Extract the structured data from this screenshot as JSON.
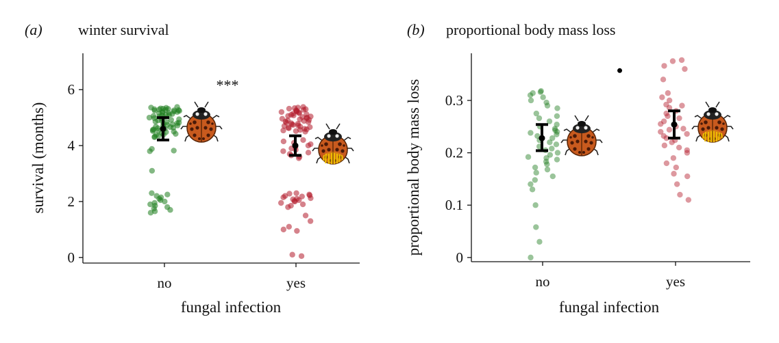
{
  "colors": {
    "no_infection": "#1e7d1e",
    "infection": "#b31b2b",
    "errorbar": "#000000",
    "axis": "#111111"
  },
  "icons": {
    "healthy_ladybird": "ladybird-icon",
    "infected_ladybird": "infected-ladybird-icon"
  },
  "chart_data": [
    {
      "type": "scatter",
      "panel_letter": "(a)",
      "title": "winter survival",
      "xlabel": "fungal infection",
      "ylabel": "survival (months)",
      "categories": [
        "no",
        "yes"
      ],
      "ylim": [
        -0.2,
        7.3
      ],
      "yticks": [
        "0",
        "2",
        "4",
        "6"
      ],
      "significance": "***",
      "series": [
        {
          "category": "no",
          "values": [
            5.38,
            5.36,
            5.35,
            5.33,
            5.32,
            5.31,
            5.3,
            5.29,
            5.28,
            5.27,
            5.26,
            5.25,
            5.24,
            5.22,
            5.21,
            5.2,
            5.18,
            5.16,
            5.15,
            5.13,
            5.11,
            5.1,
            5.08,
            5.06,
            5.04,
            5.02,
            5.0,
            4.98,
            4.96,
            4.94,
            4.92,
            4.9,
            4.88,
            4.86,
            4.84,
            4.82,
            4.8,
            4.78,
            4.76,
            4.74,
            4.72,
            4.7,
            4.68,
            4.66,
            4.64,
            4.62,
            4.6,
            4.58,
            4.56,
            4.54,
            4.52,
            4.5,
            4.48,
            4.45,
            4.42,
            4.4,
            4.38,
            4.35,
            4.32,
            4.3,
            3.88,
            3.82,
            3.8,
            3.1,
            2.3,
            2.25,
            2.2,
            2.15,
            2.1,
            2.05,
            2.0,
            1.95,
            1.9,
            1.85,
            1.8,
            1.75,
            1.7,
            1.65,
            1.6
          ],
          "mean": 4.6,
          "ci": [
            4.2,
            5.0
          ]
        },
        {
          "category": "yes",
          "values": [
            5.38,
            5.36,
            5.34,
            5.32,
            5.3,
            5.28,
            5.26,
            5.24,
            5.22,
            5.2,
            5.18,
            5.16,
            5.14,
            5.12,
            5.1,
            5.08,
            5.06,
            5.04,
            5.02,
            5.0,
            4.98,
            4.96,
            4.94,
            4.92,
            4.9,
            4.88,
            4.86,
            4.84,
            4.82,
            4.8,
            4.78,
            4.76,
            4.74,
            4.72,
            4.7,
            4.68,
            4.66,
            4.64,
            4.62,
            4.6,
            4.58,
            4.56,
            4.54,
            4.52,
            4.5,
            4.2,
            4.15,
            4.1,
            4.05,
            4.0,
            3.95,
            3.9,
            3.85,
            3.8,
            3.75,
            3.7,
            3.65,
            3.6,
            3.55,
            2.3,
            2.28,
            2.25,
            2.22,
            2.2,
            2.18,
            2.15,
            2.12,
            2.1,
            2.08,
            2.05,
            2.02,
            2.0,
            1.95,
            1.9,
            1.85,
            1.8,
            1.5,
            1.3,
            1.1,
            1.0,
            0.95,
            0.1,
            0.05
          ],
          "mean": 4.0,
          "ci": [
            3.65,
            4.35
          ]
        }
      ]
    },
    {
      "type": "scatter",
      "panel_letter": "(b)",
      "title": "proportional body mass loss",
      "xlabel": "fungal infection",
      "ylabel": "proportional body mass loss",
      "categories": [
        "no",
        "yes"
      ],
      "ylim": [
        -0.008,
        0.39
      ],
      "yticks": [
        "0",
        "0.1",
        "0.2",
        "0.3"
      ],
      "outlier": {
        "category_offset": 0.58,
        "value": 0.357
      },
      "series": [
        {
          "category": "no",
          "values": [
            0.318,
            0.316,
            0.314,
            0.31,
            0.306,
            0.3,
            0.296,
            0.29,
            0.285,
            0.275,
            0.27,
            0.266,
            0.26,
            0.254,
            0.25,
            0.246,
            0.243,
            0.24,
            0.238,
            0.235,
            0.232,
            0.228,
            0.224,
            0.22,
            0.216,
            0.212,
            0.208,
            0.205,
            0.2,
            0.196,
            0.192,
            0.19,
            0.187,
            0.183,
            0.178,
            0.172,
            0.168,
            0.162,
            0.155,
            0.148,
            0.14,
            0.13,
            0.1,
            0.058,
            0.03,
            0.0
          ],
          "mean": 0.228,
          "ci": [
            0.204,
            0.254
          ]
        },
        {
          "category": "yes",
          "values": [
            0.377,
            0.375,
            0.366,
            0.36,
            0.34,
            0.314,
            0.306,
            0.3,
            0.292,
            0.29,
            0.286,
            0.28,
            0.275,
            0.27,
            0.266,
            0.26,
            0.255,
            0.25,
            0.246,
            0.244,
            0.24,
            0.236,
            0.232,
            0.228,
            0.224,
            0.22,
            0.214,
            0.21,
            0.205,
            0.2,
            0.19,
            0.18,
            0.172,
            0.16,
            0.155,
            0.14,
            0.12,
            0.11
          ],
          "mean": 0.254,
          "ci": [
            0.228,
            0.28
          ]
        }
      ]
    }
  ]
}
